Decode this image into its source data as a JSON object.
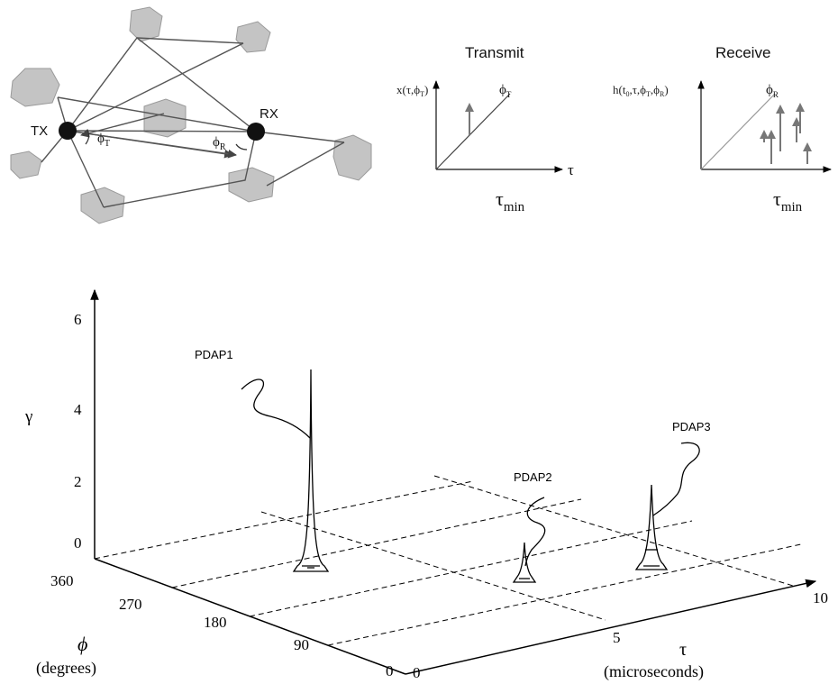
{
  "scene": {
    "tx_label": "TX",
    "rx_label": "RX",
    "phi_t_label": "ϕ",
    "phi_t_sub": "T",
    "phi_r_label": "ϕ",
    "phi_r_sub": "R"
  },
  "transmit": {
    "title": "Transmit",
    "y_label": "x(τ,ϕ",
    "y_label_sub": "T",
    "y_label_close": ")",
    "phi_label": "ϕ",
    "phi_sub": "T",
    "tau_label": "τ",
    "tmin_label": "τ",
    "tmin_sub": "min"
  },
  "receive": {
    "title": "Receive",
    "y_label": "h(t",
    "y_label_sub": "0",
    "y_label_rest": ",τ,ϕ",
    "y_label_sub2": "T",
    "y_label_mid": ",ϕ",
    "y_label_sub3": "R",
    "y_label_close": ")",
    "phi_label": "ϕ",
    "phi_sub": "R",
    "tmin_label": "τ",
    "tmin_sub": "min"
  },
  "pdap": {
    "gamma_label": "γ",
    "gamma_ticks": [
      "6",
      "4",
      "2",
      "0"
    ],
    "phi_label": "ϕ",
    "phi_unit": "(degrees)",
    "phi_ticks": [
      "360",
      "270",
      "180",
      "90",
      "0"
    ],
    "tau_label": "τ",
    "tau_unit": "(microseconds)",
    "tau_ticks": [
      "0",
      "5",
      "10"
    ],
    "peaks": [
      "PDAP1",
      "PDAP2",
      "PDAP3"
    ]
  }
}
